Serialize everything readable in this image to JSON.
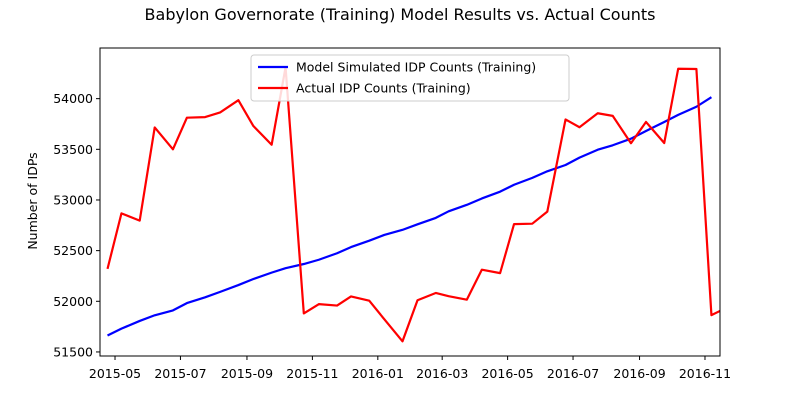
{
  "chart_data": {
    "type": "line",
    "title": "Babylon Governorate (Training) Model Results vs. Actual Counts",
    "xlabel": "",
    "ylabel": "Number of IDPs",
    "x_tick_labels": [
      "2015-05",
      "2015-07",
      "2015-09",
      "2015-11",
      "2016-01",
      "2016-03",
      "2016-05",
      "2016-07",
      "2016-09",
      "2016-11"
    ],
    "x_ticks": [
      "2015-05-01",
      "2015-07-01",
      "2015-09-01",
      "2015-11-01",
      "2016-01-01",
      "2016-03-01",
      "2016-05-01",
      "2016-07-01",
      "2016-09-01",
      "2016-11-01"
    ],
    "xlim": [
      "2015-04-17",
      "2016-11-15"
    ],
    "y_ticks": [
      51500,
      52000,
      52500,
      53000,
      53500,
      54000
    ],
    "ylim": [
      51460,
      54500
    ],
    "grid": false,
    "legend_position": "upper center",
    "series": [
      {
        "name": "Model Simulated IDP Counts (Training)",
        "color": "#0000ff",
        "points": [
          [
            "2015-04-24",
            51662
          ],
          [
            "2015-05-07",
            51730
          ],
          [
            "2015-05-24",
            51806
          ],
          [
            "2015-06-07",
            51862
          ],
          [
            "2015-06-24",
            51910
          ],
          [
            "2015-07-07",
            51982
          ],
          [
            "2015-07-24",
            52039
          ],
          [
            "2015-08-07",
            52093
          ],
          [
            "2015-08-24",
            52160
          ],
          [
            "2015-09-07",
            52220
          ],
          [
            "2015-09-24",
            52283
          ],
          [
            "2015-10-07",
            52327
          ],
          [
            "2015-10-24",
            52368
          ],
          [
            "2015-11-07",
            52410
          ],
          [
            "2015-11-24",
            52474
          ],
          [
            "2015-12-07",
            52535
          ],
          [
            "2015-12-24",
            52598
          ],
          [
            "2016-01-07",
            52655
          ],
          [
            "2016-01-24",
            52705
          ],
          [
            "2016-02-07",
            52760
          ],
          [
            "2016-02-24",
            52823
          ],
          [
            "2016-03-07",
            52888
          ],
          [
            "2016-03-24",
            52952
          ],
          [
            "2016-04-07",
            53015
          ],
          [
            "2016-04-24",
            53082
          ],
          [
            "2016-05-07",
            53150
          ],
          [
            "2016-05-24",
            53218
          ],
          [
            "2016-06-07",
            53283
          ],
          [
            "2016-06-24",
            53345
          ],
          [
            "2016-07-07",
            53418
          ],
          [
            "2016-07-24",
            53496
          ],
          [
            "2016-08-07",
            53540
          ],
          [
            "2016-08-24",
            53605
          ],
          [
            "2016-09-07",
            53681
          ],
          [
            "2016-09-24",
            53770
          ],
          [
            "2016-10-07",
            53840
          ],
          [
            "2016-10-24",
            53920
          ],
          [
            "2016-11-07",
            54015
          ]
        ]
      },
      {
        "name": "Actual IDP Counts (Training)",
        "color": "#ff0000",
        "points": [
          [
            "2015-04-24",
            52320
          ],
          [
            "2015-05-07",
            52868
          ],
          [
            "2015-05-24",
            52796
          ],
          [
            "2015-06-07",
            53716
          ],
          [
            "2015-06-24",
            53500
          ],
          [
            "2015-07-07",
            53812
          ],
          [
            "2015-07-24",
            53818
          ],
          [
            "2015-08-07",
            53864
          ],
          [
            "2015-08-24",
            53985
          ],
          [
            "2015-09-07",
            53730
          ],
          [
            "2015-09-24",
            53545
          ],
          [
            "2015-10-07",
            54310
          ],
          [
            "2015-10-24",
            51880
          ],
          [
            "2015-11-07",
            51972
          ],
          [
            "2015-11-24",
            51958
          ],
          [
            "2015-12-07",
            52048
          ],
          [
            "2015-12-24",
            52006
          ],
          [
            "2016-01-07",
            51823
          ],
          [
            "2016-01-24",
            51605
          ],
          [
            "2016-02-07",
            52010
          ],
          [
            "2016-02-24",
            52082
          ],
          [
            "2016-03-07",
            52050
          ],
          [
            "2016-03-24",
            52016
          ],
          [
            "2016-04-07",
            52312
          ],
          [
            "2016-04-24",
            52278
          ],
          [
            "2016-05-07",
            52762
          ],
          [
            "2016-05-24",
            52766
          ],
          [
            "2016-06-07",
            52885
          ],
          [
            "2016-06-24",
            53795
          ],
          [
            "2016-07-07",
            53718
          ],
          [
            "2016-07-24",
            53856
          ],
          [
            "2016-08-07",
            53830
          ],
          [
            "2016-08-24",
            53560
          ],
          [
            "2016-09-07",
            53770
          ],
          [
            "2016-09-24",
            53562
          ],
          [
            "2016-10-07",
            54295
          ],
          [
            "2016-10-24",
            54293
          ],
          [
            "2016-11-07",
            51863
          ],
          [
            "2016-11-24",
            51952
          ]
        ]
      }
    ]
  }
}
